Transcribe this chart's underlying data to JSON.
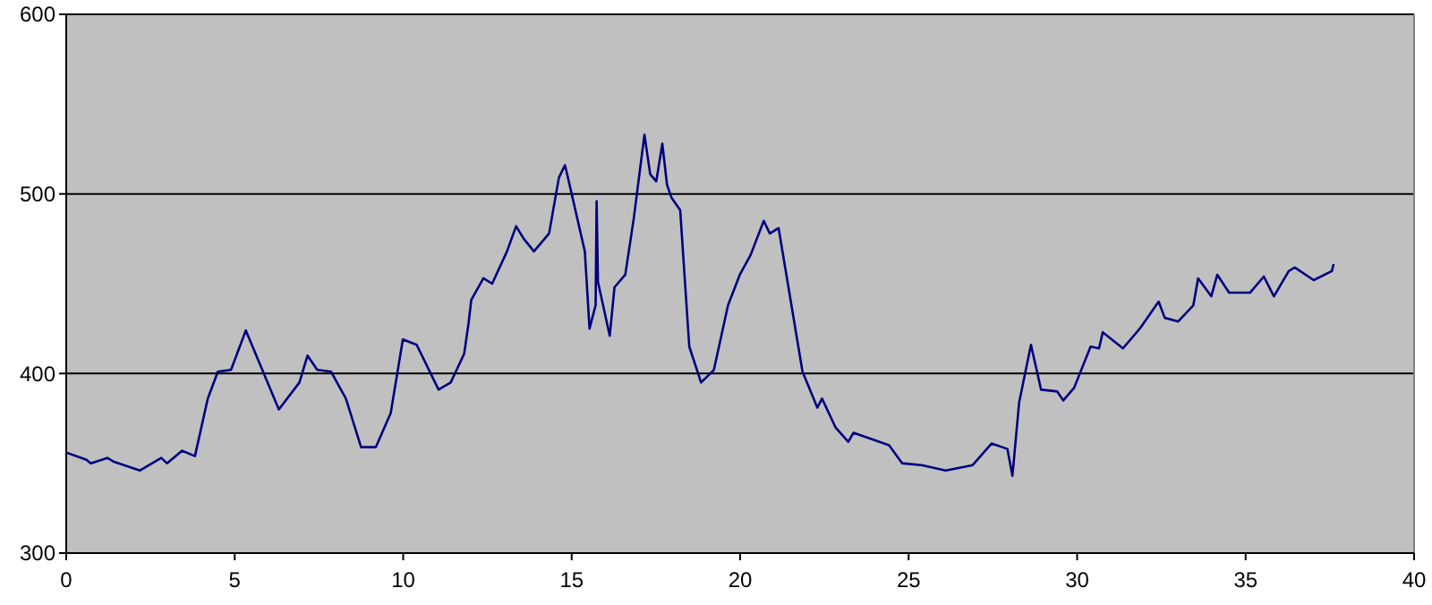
{
  "chart_data": {
    "type": "line",
    "xlim": [
      0,
      40
    ],
    "xticks": [
      0,
      5,
      10,
      15,
      20,
      25,
      30,
      35,
      40
    ],
    "ylim": [
      300,
      600
    ],
    "yticks": [
      300,
      400,
      500,
      600
    ],
    "grid": "y",
    "marker": "none",
    "line_style": "solid",
    "series": [
      {
        "color": "#000080",
        "x": [
          0,
          0.6,
          0.73,
          1.22,
          1.4,
          2.19,
          2.82,
          2.99,
          3.44,
          3.82,
          4.2,
          4.5,
          4.89,
          5.33,
          6.31,
          6.92,
          7.16,
          7.45,
          7.86,
          8.3,
          8.75,
          9.19,
          9.63,
          9.99,
          10.4,
          11.05,
          11.41,
          11.81,
          11.94,
          12.02,
          12.38,
          12.64,
          13.08,
          13.35,
          13.58,
          13.88,
          14.33,
          14.62,
          14.8,
          14.89,
          15.39,
          15.53,
          15.71,
          15.74,
          15.78,
          16.13,
          16.27,
          16.59,
          16.84,
          17.16,
          17.33,
          17.51,
          17.69,
          17.83,
          17.96,
          18.22,
          18.49,
          18.84,
          19.22,
          19.64,
          19.99,
          20.31,
          20.7,
          20.88,
          21.14,
          21.85,
          22.29,
          22.43,
          22.83,
          23.21,
          23.36,
          24.42,
          24.81,
          25.39,
          26.1,
          26.9,
          27.46,
          27.93,
          28.08,
          28.28,
          28.63,
          28.93,
          29.41,
          29.59,
          29.91,
          30.4,
          30.65,
          30.76,
          31.36,
          31.86,
          32.42,
          32.6,
          33,
          33.45,
          33.59,
          33.98,
          34.16,
          34.51,
          35.13,
          35.54,
          35.84,
          36.28,
          36.46,
          37.02,
          37.56,
          37.61
        ],
        "values": [
          356,
          352,
          350,
          353,
          351,
          346,
          353,
          350,
          357,
          354,
          386,
          401,
          402,
          424,
          380,
          395,
          410,
          402,
          401,
          386,
          359,
          359,
          378,
          419,
          416,
          391,
          395,
          411,
          428,
          441,
          453,
          450,
          468,
          482,
          475,
          468,
          478,
          509,
          516,
          509,
          468,
          425,
          438,
          496,
          451,
          421,
          448,
          455,
          486,
          533,
          511,
          507,
          528,
          505,
          498,
          491,
          415,
          395,
          402,
          438,
          455,
          466,
          485,
          478,
          481,
          401,
          381,
          386,
          370,
          362,
          367,
          360,
          350,
          349,
          346,
          349,
          361,
          358,
          343,
          384,
          416,
          391,
          390,
          385,
          392,
          415,
          414,
          423,
          414,
          425,
          440,
          431,
          429,
          438,
          453,
          443,
          455,
          445,
          445,
          454,
          443,
          457,
          459,
          452,
          457,
          461
        ]
      }
    ]
  }
}
